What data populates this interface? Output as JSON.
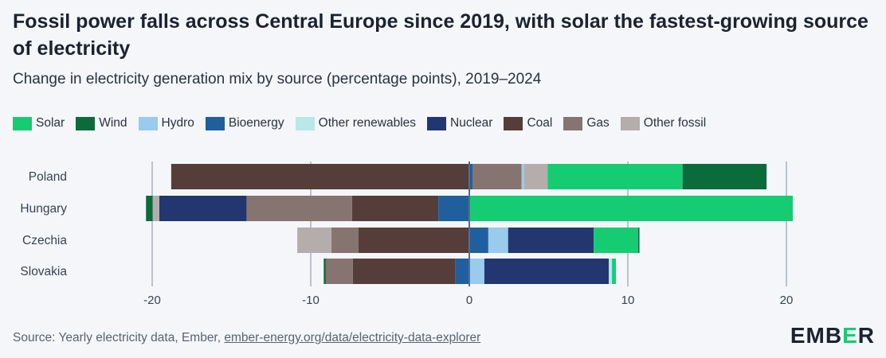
{
  "title": "Fossil power falls across Central Europe since 2019, with solar the fastest-growing source of electricity",
  "subtitle": "Change in electricity generation mix by source (percentage points), 2019–2024",
  "source_prefix": "Source: Yearly electricity data, Ember, ",
  "source_link": "ember-energy.org/data/electricity-data-explorer",
  "logo": {
    "left": "EMB",
    "mid": "E",
    "right": "R"
  },
  "colors": {
    "Solar": "#16cc73",
    "Wind": "#0b6b3a",
    "Hydro": "#98cbec",
    "Bioenergy": "#1f5f9e",
    "Other renewables": "#b8e8e8",
    "Nuclear": "#22376f",
    "Coal": "#553e39",
    "Gas": "#857470",
    "Other fossil": "#b5adab"
  },
  "chart_data": {
    "type": "bar",
    "orientation": "horizontal",
    "stacked": true,
    "title": "Change in electricity generation mix by source (percentage points), 2019–2024",
    "legend": [
      "Solar",
      "Wind",
      "Hydro",
      "Bioenergy",
      "Other renewables",
      "Nuclear",
      "Coal",
      "Gas",
      "Other fossil"
    ],
    "legend_position": "top",
    "categories": [
      "Poland",
      "Hungary",
      "Czechia",
      "Slovakia"
    ],
    "xlim": [
      -21,
      21
    ],
    "xticks": [
      -20,
      -10,
      0,
      10,
      20
    ],
    "xtick_labels": [
      "-20",
      "-10",
      "0",
      "10",
      "20"
    ],
    "grid": true,
    "rows": [
      {
        "name": "Poland",
        "negative": [
          [
            "Coal",
            -18.8
          ]
        ],
        "positive": [
          [
            "Bioenergy",
            0.2
          ],
          [
            "Gas",
            3.1
          ],
          [
            "Hydro",
            0.15
          ],
          [
            "Other fossil",
            1.5
          ],
          [
            "Solar",
            8.5
          ],
          [
            "Wind",
            5.3
          ]
        ]
      },
      {
        "name": "Hungary",
        "negative": [
          [
            "Bioenergy",
            -1.95
          ],
          [
            "Coal",
            -5.45
          ],
          [
            "Gas",
            -6.65
          ],
          [
            "Nuclear",
            -5.5
          ],
          [
            "Other fossil",
            -0.42
          ],
          [
            "Wind",
            -0.42
          ]
        ],
        "positive": [
          [
            "Solar",
            20.4
          ]
        ]
      },
      {
        "name": "Czechia",
        "negative": [
          [
            "Coal",
            -7.0
          ],
          [
            "Gas",
            -1.7
          ],
          [
            "Other fossil",
            -2.15
          ]
        ],
        "positive": [
          [
            "Bioenergy",
            1.2
          ],
          [
            "Hydro",
            1.25
          ],
          [
            "Nuclear",
            5.4
          ],
          [
            "Solar",
            2.8
          ],
          [
            "Wind",
            0.08
          ]
        ]
      },
      {
        "name": "Slovakia",
        "negative": [
          [
            "Bioenergy",
            -0.9
          ],
          [
            "Coal",
            -6.45
          ],
          [
            "Gas",
            -1.7
          ],
          [
            "Wind",
            -0.13
          ]
        ],
        "positive": [
          [
            "Hydro",
            0.95
          ],
          [
            "Nuclear",
            7.85
          ],
          [
            "Other renewables",
            0.2
          ],
          [
            "Solar",
            0.25
          ]
        ]
      }
    ]
  }
}
